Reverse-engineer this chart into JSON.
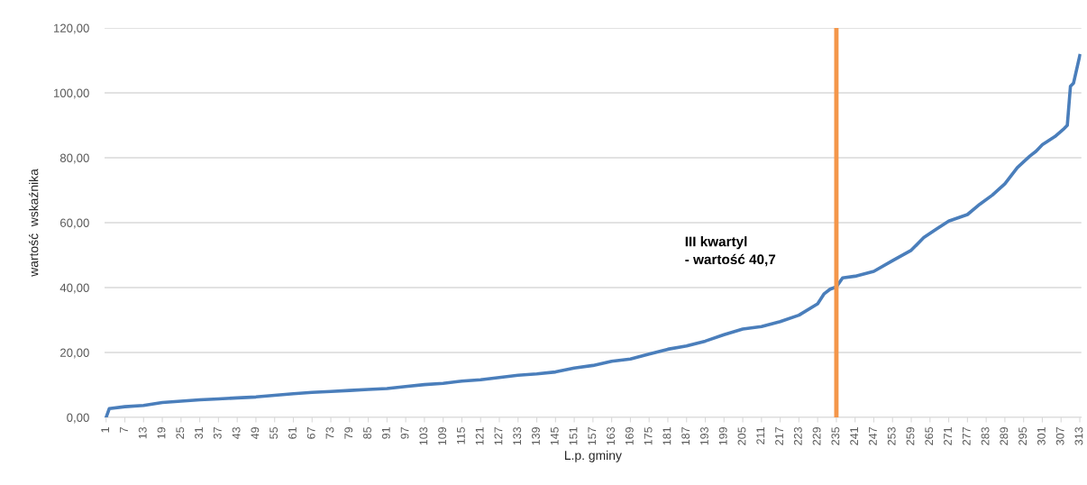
{
  "chart_data": {
    "type": "line",
    "xlabel": "L.p. gminy",
    "ylabel": "wartość  wskaźnika",
    "series": [
      {
        "color": "#4a7ebb",
        "x": [
          1,
          2,
          7,
          13,
          19,
          25,
          31,
          37,
          43,
          49,
          55,
          61,
          67,
          73,
          79,
          85,
          91,
          97,
          103,
          109,
          115,
          121,
          127,
          133,
          139,
          145,
          151,
          157,
          163,
          169,
          175,
          181,
          187,
          193,
          199,
          205,
          211,
          217,
          223,
          229,
          231,
          233,
          235,
          237,
          241,
          247,
          253,
          259,
          263,
          267,
          271,
          277,
          281,
          285,
          289,
          291,
          293,
          297,
          299,
          301,
          305,
          308,
          309,
          310,
          311,
          313
        ],
        "values": [
          0,
          2.7,
          3.3,
          3.7,
          4.6,
          5.0,
          5.4,
          5.7,
          6.0,
          6.3,
          6.8,
          7.3,
          7.7,
          8.0,
          8.3,
          8.6,
          8.9,
          9.5,
          10.1,
          10.5,
          11.2,
          11.6,
          12.3,
          13.0,
          13.4,
          14.0,
          15.2,
          16.0,
          17.3,
          18.0,
          19.5,
          21.0,
          22.0,
          23.5,
          25.5,
          27.2,
          28.0,
          29.5,
          31.5,
          35.0,
          38.0,
          39.5,
          40.2,
          43.0,
          43.5,
          45.0,
          48.3,
          51.5,
          55.4,
          58.0,
          60.5,
          62.5,
          65.7,
          68.5,
          72.0,
          74.5,
          77.0,
          80.5,
          82.0,
          84.0,
          86.5,
          89.0,
          90.0,
          102.0,
          103.0,
          111.5
        ]
      }
    ],
    "xlim": [
      0.5,
      313.5
    ],
    "xticks": [
      1,
      7,
      13,
      19,
      25,
      31,
      37,
      43,
      49,
      55,
      61,
      67,
      73,
      79,
      85,
      91,
      97,
      103,
      109,
      115,
      121,
      127,
      133,
      139,
      145,
      151,
      157,
      163,
      169,
      175,
      181,
      187,
      193,
      199,
      205,
      211,
      217,
      223,
      229,
      235,
      241,
      247,
      253,
      259,
      265,
      271,
      277,
      283,
      289,
      295,
      301,
      307,
      313
    ],
    "ylim": [
      0,
      120
    ],
    "yticks": [
      {
        "value": 0,
        "label": "0,00"
      },
      {
        "value": 20,
        "label": "20,00"
      },
      {
        "value": 40,
        "label": "40,00"
      },
      {
        "value": 60,
        "label": "60,00"
      },
      {
        "value": 80,
        "label": "80,00"
      },
      {
        "value": 100,
        "label": "100,00"
      },
      {
        "value": 120,
        "label": "120,00"
      }
    ],
    "grid": "y",
    "legend": false,
    "marker": "none",
    "line_style": "solid",
    "ref_lines": [
      {
        "axis": "x",
        "value": 235,
        "color": "#f4964a",
        "line_style": "solid"
      }
    ],
    "annotations": [
      "III kwartyl\n- wartość 40,7"
    ]
  }
}
